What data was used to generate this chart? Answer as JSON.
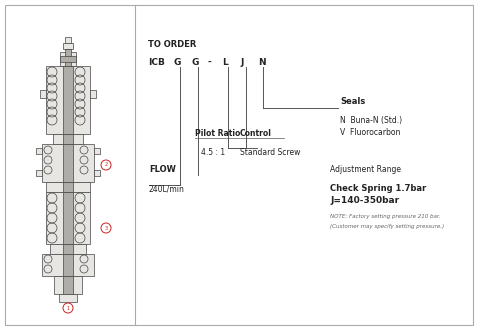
{
  "bg_color": "#ffffff",
  "border_color": "#bbbbbb",
  "title": "TO ORDER",
  "seals_label": "Seals",
  "seals_n": "N  Buna-N (Std.)",
  "seals_v": "V  Fluorocarbon",
  "pilot_ratio_label": "Pilot Ratio",
  "pilot_ratio_value": "4.5 : 1",
  "control_label": "Control",
  "control_value": "Standard Screw",
  "flow_label": "FLOW",
  "flow_value": "240L/min",
  "adj_range_label": "Adjustment Range",
  "adj_check_spring": "Check Spring 1.7bar",
  "adj_j_range": "J=140-350bar",
  "note_line1": "NOTE: Factory setting pressure 210 bar.",
  "note_line2": "(Customer may specify setting pressure.)",
  "line_color": "#555555",
  "text_color": "#222222",
  "red_color": "#cc2222"
}
